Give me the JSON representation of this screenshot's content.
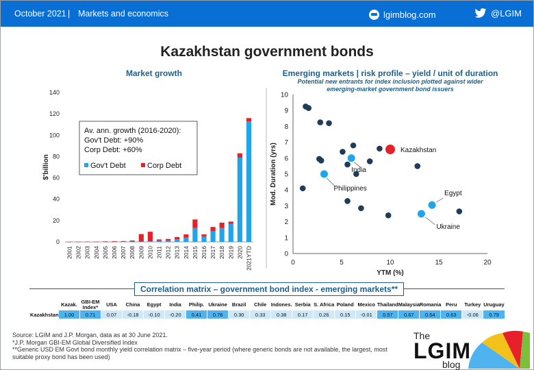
{
  "header": {
    "date": "October 2021",
    "separator": "|",
    "section": "Markets and economics",
    "site": "lgimblog.com",
    "handle": "@LGIM",
    "site_icon": "globe-icon",
    "social_icon": "twitter-bird-icon",
    "bar_color": "#0a6fd4"
  },
  "title": "Kazakhstan government bonds",
  "chart_data": [
    {
      "type": "bar",
      "stacked": true,
      "title": "Market growth",
      "ylabel": "$'billion",
      "xlabel": "",
      "ylim": [
        0,
        140
      ],
      "yticks": [
        0,
        20,
        40,
        60,
        80,
        100,
        120,
        140
      ],
      "categories": [
        "2001",
        "2002",
        "2003",
        "2004",
        "2005",
        "2006",
        "2007",
        "2008",
        "2009",
        "2010",
        "2011",
        "2012",
        "2013",
        "2014",
        "2015",
        "2016",
        "2017",
        "2018",
        "2019",
        "2020",
        "2021YTD"
      ],
      "series": [
        {
          "name": "Gov't Debt",
          "color": "#1fa5e8",
          "values": [
            0,
            0,
            0,
            0,
            0.2,
            0.2,
            0.3,
            0.3,
            0.3,
            0.5,
            0.8,
            1.2,
            2.5,
            4,
            13,
            5,
            10,
            13,
            17,
            79,
            113
          ]
        },
        {
          "name": "Corp Debt",
          "color": "#e8202a",
          "values": [
            0.1,
            0.1,
            0.2,
            0.2,
            0.3,
            0.5,
            0.5,
            1,
            7,
            9,
            1.5,
            1.5,
            2,
            3,
            8,
            2,
            4,
            5,
            2,
            4,
            3
          ]
        }
      ],
      "legend": "inside upper-left",
      "annotation": [
        "Av. ann. growth (2016-2020):",
        "Gov't Debt: +90%",
        "Corp Debt: +60%"
      ]
    },
    {
      "type": "scatter",
      "title": "Emerging markets | risk profile – yield / unit of duration",
      "subtitle": [
        "Potential new entrants for index inclusion plotted against wider",
        "emerging-market government bond issuers"
      ],
      "xlabel": "YTM (%)",
      "ylabel": "Mod. Duration (yrs)",
      "xlim": [
        0,
        20
      ],
      "ylim": [
        0,
        10
      ],
      "xticks": [
        0,
        5,
        10,
        15,
        20
      ],
      "yticks": [
        0,
        1,
        2,
        3,
        4,
        5,
        6,
        7,
        8,
        9,
        10
      ],
      "points": [
        {
          "x": 1.3,
          "y": 9.25
        },
        {
          "x": 1.6,
          "y": 9.15
        },
        {
          "x": 2.8,
          "y": 8.25
        },
        {
          "x": 3.7,
          "y": 8.2
        },
        {
          "x": 6.2,
          "y": 6.8
        },
        {
          "x": 5.1,
          "y": 6.4
        },
        {
          "x": 8.9,
          "y": 6.6
        },
        {
          "x": 2.7,
          "y": 5.95
        },
        {
          "x": 2.9,
          "y": 5.85
        },
        {
          "x": 5.6,
          "y": 5.6
        },
        {
          "x": 7.9,
          "y": 5.8
        },
        {
          "x": 12.8,
          "y": 5.5
        },
        {
          "x": 6.5,
          "y": 5.0
        },
        {
          "x": 1.0,
          "y": 4.1
        },
        {
          "x": 5.6,
          "y": 3.3
        },
        {
          "x": 7.0,
          "y": 2.85
        },
        {
          "x": 9.8,
          "y": 2.4
        },
        {
          "x": 17.1,
          "y": 2.65
        }
      ],
      "highlighted": [
        {
          "label": "Kazakhstan",
          "x": 10.0,
          "y": 6.55,
          "color": "#e8202a"
        },
        {
          "label": "India",
          "x": 6.0,
          "y": 6.0,
          "color": "#1fa5e8"
        },
        {
          "label": "Philippines",
          "x": 3.2,
          "y": 5.0,
          "color": "#1fa5e8"
        },
        {
          "label": "Egypt",
          "x": 14.3,
          "y": 3.05,
          "color": "#1fa5e8"
        },
        {
          "label": "Ukraine",
          "x": 13.2,
          "y": 2.5,
          "color": "#1fa5e8"
        }
      ],
      "point_color": "#1f3c5a"
    }
  ],
  "correlation": {
    "title": "Correlation matrix – government bond index - emerging markets**",
    "row_label": "Kazakhstan",
    "columns": [
      {
        "name": "Kazak.",
        "value": "1.00",
        "hi": true
      },
      {
        "name": "GBI-EM Index*",
        "value": "0.71",
        "hi": true
      },
      {
        "name": "USA",
        "value": "0.07",
        "hi": false
      },
      {
        "name": "China",
        "value": "-0.18",
        "hi": false
      },
      {
        "name": "Egypt",
        "value": "-0.10",
        "hi": false
      },
      {
        "name": "India",
        "value": "-0.20",
        "hi": false
      },
      {
        "name": "Philip.",
        "value": "0.41",
        "hi": true
      },
      {
        "name": "Ukraine",
        "value": "0.76",
        "hi": true
      },
      {
        "name": "Brazil",
        "value": "0.30",
        "hi": false
      },
      {
        "name": "Chile",
        "value": "0.33",
        "hi": false
      },
      {
        "name": "Indones.",
        "value": "0.38",
        "hi": false
      },
      {
        "name": "Serbia",
        "value": "0.17",
        "hi": false
      },
      {
        "name": "S. Africa",
        "value": "0.26",
        "hi": false
      },
      {
        "name": "Poland",
        "value": "0.15",
        "hi": false
      },
      {
        "name": "Mexico",
        "value": "-0.01",
        "hi": false
      },
      {
        "name": "Thailand",
        "value": "0.57",
        "hi": true
      },
      {
        "name": "Malaysia",
        "value": "0.67",
        "hi": true
      },
      {
        "name": "Romania",
        "value": "0.54",
        "hi": true
      },
      {
        "name": "Peru",
        "value": "0.63",
        "hi": true
      },
      {
        "name": "Turkey",
        "value": "-0.06",
        "hi": false
      },
      {
        "name": "Uruguay",
        "value": "0.79",
        "hi": true
      }
    ]
  },
  "footer": {
    "lines": [
      "Source: LGIM and J.P. Morgan, data as at 30 June 2021.",
      "*J.P. Morgan GBI-EM Global Diversified Index",
      "**Generic USD EM Govt bond monthly yield correlation matrix – five-year period (where generic bonds are not available, the largest, most suitable proxy bond has been used)"
    ],
    "logo_the": "The",
    "logo_name": "LGIM",
    "logo_blog": "blog"
  }
}
